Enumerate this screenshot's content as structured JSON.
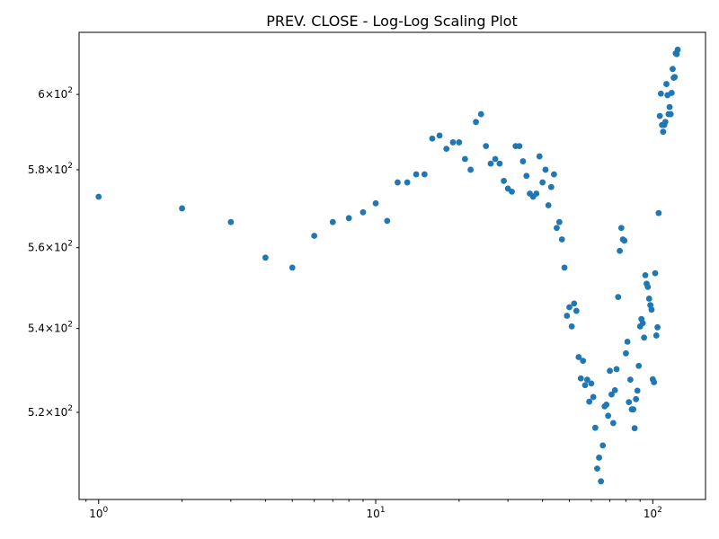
{
  "chart_data": {
    "type": "scatter",
    "title": "PREV. CLOSE  - Log-Log Scaling Plot",
    "xlabel": "",
    "ylabel": "",
    "x_scale": "log",
    "y_scale": "log",
    "xlim": [
      0.85,
      155
    ],
    "ylim": [
      500,
      617
    ],
    "grid": false,
    "color": "#1f77b4",
    "x_ticks": [
      {
        "value": 1,
        "label": "10^0"
      },
      {
        "value": 10,
        "label": "10^1"
      },
      {
        "value": 100,
        "label": "10^2"
      }
    ],
    "y_ticks": [
      {
        "value": 520,
        "label": "5.2×10^2"
      },
      {
        "value": 540,
        "label": "5.4×10^2"
      },
      {
        "value": 560,
        "label": "5.6×10^2"
      },
      {
        "value": 580,
        "label": "5.8×10^2"
      },
      {
        "value": 600,
        "label": "6×10^2"
      }
    ],
    "points": [
      [
        1,
        573
      ],
      [
        2,
        570
      ],
      [
        3,
        566.5
      ],
      [
        4,
        557.5
      ],
      [
        5,
        555
      ],
      [
        6,
        563
      ],
      [
        7,
        566.5
      ],
      [
        8,
        567.5
      ],
      [
        9,
        569
      ],
      [
        10,
        571.3
      ],
      [
        11,
        566.8
      ],
      [
        12,
        576.7
      ],
      [
        13,
        576.7
      ],
      [
        14,
        578.8
      ],
      [
        15,
        578.8
      ],
      [
        16,
        588.2
      ],
      [
        17,
        589
      ],
      [
        18,
        585.5
      ],
      [
        19,
        587.2
      ],
      [
        20,
        587.2
      ],
      [
        21,
        582.8
      ],
      [
        22,
        580
      ],
      [
        23,
        592.6
      ],
      [
        24,
        594.7
      ],
      [
        25,
        586.2
      ],
      [
        26,
        581.6
      ],
      [
        27,
        582.8
      ],
      [
        28,
        581.6
      ],
      [
        29,
        577.1
      ],
      [
        30,
        575.1
      ],
      [
        31,
        574.3
      ],
      [
        32,
        586.2
      ],
      [
        33,
        586.2
      ],
      [
        34,
        582.2
      ],
      [
        35,
        578.4
      ],
      [
        36,
        573.8
      ],
      [
        37,
        573
      ],
      [
        38,
        573.8
      ],
      [
        39,
        583.5
      ],
      [
        40,
        576.7
      ],
      [
        41,
        580
      ],
      [
        42,
        570.8
      ],
      [
        43,
        575.5
      ],
      [
        44,
        578.8
      ],
      [
        45,
        565
      ],
      [
        46,
        566.5
      ],
      [
        47,
        562.1
      ],
      [
        48,
        555
      ],
      [
        49,
        543.1
      ],
      [
        50,
        545.2
      ],
      [
        51,
        540.5
      ],
      [
        52,
        546.1
      ],
      [
        53,
        544.3
      ],
      [
        54,
        533.1
      ],
      [
        55,
        528
      ],
      [
        56,
        532.2
      ],
      [
        57,
        526.4
      ],
      [
        58,
        527.7
      ],
      [
        59,
        522.5
      ],
      [
        60,
        526.8
      ],
      [
        61,
        523.6
      ],
      [
        62,
        516.4
      ],
      [
        63,
        507
      ],
      [
        64,
        509.5
      ],
      [
        65,
        504.1
      ],
      [
        66,
        512.3
      ],
      [
        67,
        521.4
      ],
      [
        68,
        521.8
      ],
      [
        69,
        519.2
      ],
      [
        70,
        529.8
      ],
      [
        71,
        524.2
      ],
      [
        72,
        517.5
      ],
      [
        73,
        525.2
      ],
      [
        74,
        530.2
      ],
      [
        75,
        547.7
      ],
      [
        76,
        559.2
      ],
      [
        77,
        565
      ],
      [
        78,
        562.1
      ],
      [
        79,
        561.8
      ],
      [
        80,
        534
      ],
      [
        81,
        536.8
      ],
      [
        82,
        522.4
      ],
      [
        83,
        527.7
      ],
      [
        84,
        520.7
      ],
      [
        85,
        520.7
      ],
      [
        86,
        516.3
      ],
      [
        87,
        523.1
      ],
      [
        88,
        525.1
      ],
      [
        89,
        531
      ],
      [
        90,
        540.5
      ],
      [
        91,
        542.3
      ],
      [
        92,
        541.3
      ],
      [
        93,
        537.8
      ],
      [
        94,
        553.1
      ],
      [
        95,
        551
      ],
      [
        96,
        550.2
      ],
      [
        97,
        547.3
      ],
      [
        98,
        545.7
      ],
      [
        99,
        544.6
      ],
      [
        100,
        527.8
      ],
      [
        101,
        527.1
      ],
      [
        102,
        553.6
      ],
      [
        103,
        538.3
      ],
      [
        104,
        540.3
      ],
      [
        105,
        568.8
      ],
      [
        106,
        594.2
      ],
      [
        107,
        600.2
      ],
      [
        108,
        591.8
      ],
      [
        109,
        590
      ],
      [
        110,
        591.8
      ],
      [
        111,
        592.6
      ],
      [
        112,
        602.8
      ],
      [
        113,
        599.8
      ],
      [
        114,
        594.7
      ],
      [
        115,
        596.6
      ],
      [
        116,
        594.7
      ],
      [
        117,
        600.4
      ],
      [
        118,
        606.9
      ],
      [
        119,
        604.5
      ],
      [
        120,
        604.7
      ],
      [
        121,
        611.2
      ],
      [
        122,
        611
      ],
      [
        123,
        612.2
      ]
    ]
  }
}
